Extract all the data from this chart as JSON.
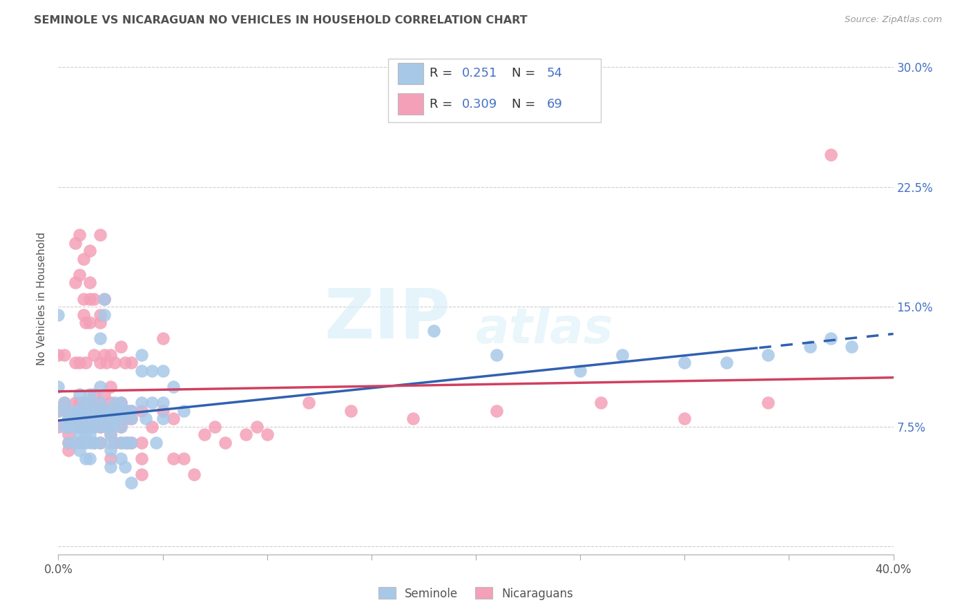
{
  "title": "SEMINOLE VS NICARAGUAN NO VEHICLES IN HOUSEHOLD CORRELATION CHART",
  "source": "Source: ZipAtlas.com",
  "ylabel": "No Vehicles in Household",
  "xlim": [
    0.0,
    0.4
  ],
  "ylim": [
    -0.005,
    0.315
  ],
  "watermark_line1": "ZIP",
  "watermark_line2": "atlas",
  "seminole_R": 0.251,
  "seminole_N": 54,
  "nicaraguan_R": 0.309,
  "nicaraguan_N": 69,
  "seminole_color": "#a8c8e8",
  "nicaraguan_color": "#f4a0b8",
  "seminole_line_color": "#3060b0",
  "nicaraguan_line_color": "#d04060",
  "title_color": "#505050",
  "blue_text_color": "#4472c4",
  "ytick_positions": [
    0.0,
    0.075,
    0.15,
    0.225,
    0.3
  ],
  "ytick_labels": [
    "",
    "7.5%",
    "15.0%",
    "22.5%",
    "30.0%"
  ],
  "seminole_points_x": [
    0.0,
    0.0,
    0.0,
    0.003,
    0.003,
    0.005,
    0.005,
    0.005,
    0.005,
    0.008,
    0.008,
    0.008,
    0.008,
    0.01,
    0.01,
    0.01,
    0.01,
    0.01,
    0.01,
    0.012,
    0.012,
    0.012,
    0.012,
    0.012,
    0.013,
    0.013,
    0.013,
    0.013,
    0.015,
    0.015,
    0.015,
    0.015,
    0.015,
    0.015,
    0.015,
    0.015,
    0.017,
    0.017,
    0.017,
    0.017,
    0.02,
    0.02,
    0.02,
    0.02,
    0.02,
    0.02,
    0.02,
    0.022,
    0.022,
    0.022,
    0.023,
    0.023,
    0.024,
    0.025,
    0.025,
    0.025,
    0.025,
    0.025,
    0.025,
    0.025,
    0.027,
    0.027,
    0.027,
    0.03,
    0.03,
    0.03,
    0.03,
    0.03,
    0.03,
    0.032,
    0.032,
    0.032,
    0.033,
    0.033,
    0.035,
    0.035,
    0.035,
    0.035,
    0.04,
    0.04,
    0.04,
    0.042,
    0.045,
    0.045,
    0.047,
    0.05,
    0.05,
    0.05,
    0.055,
    0.06,
    0.18,
    0.21,
    0.25,
    0.27,
    0.3,
    0.32,
    0.34,
    0.36,
    0.37,
    0.38
  ],
  "seminole_points_y": [
    0.145,
    0.1,
    0.085,
    0.075,
    0.09,
    0.085,
    0.08,
    0.075,
    0.065,
    0.085,
    0.08,
    0.075,
    0.065,
    0.095,
    0.085,
    0.08,
    0.075,
    0.07,
    0.06,
    0.09,
    0.085,
    0.08,
    0.075,
    0.065,
    0.075,
    0.07,
    0.065,
    0.055,
    0.095,
    0.09,
    0.085,
    0.08,
    0.075,
    0.07,
    0.065,
    0.055,
    0.085,
    0.08,
    0.075,
    0.065,
    0.13,
    0.1,
    0.09,
    0.085,
    0.08,
    0.075,
    0.065,
    0.155,
    0.145,
    0.085,
    0.085,
    0.08,
    0.075,
    0.085,
    0.08,
    0.075,
    0.07,
    0.065,
    0.06,
    0.05,
    0.09,
    0.085,
    0.08,
    0.09,
    0.085,
    0.08,
    0.075,
    0.065,
    0.055,
    0.085,
    0.065,
    0.05,
    0.085,
    0.065,
    0.085,
    0.08,
    0.065,
    0.04,
    0.12,
    0.11,
    0.09,
    0.08,
    0.11,
    0.09,
    0.065,
    0.11,
    0.09,
    0.08,
    0.1,
    0.085,
    0.135,
    0.12,
    0.11,
    0.12,
    0.115,
    0.115,
    0.12,
    0.125,
    0.13,
    0.125
  ],
  "nicaraguan_points_x": [
    0.0,
    0.0,
    0.0,
    0.003,
    0.003,
    0.005,
    0.005,
    0.005,
    0.005,
    0.005,
    0.005,
    0.008,
    0.008,
    0.008,
    0.008,
    0.008,
    0.01,
    0.01,
    0.01,
    0.01,
    0.01,
    0.01,
    0.01,
    0.01,
    0.012,
    0.012,
    0.012,
    0.013,
    0.013,
    0.013,
    0.013,
    0.013,
    0.015,
    0.015,
    0.015,
    0.015,
    0.015,
    0.015,
    0.015,
    0.015,
    0.017,
    0.017,
    0.017,
    0.017,
    0.017,
    0.017,
    0.02,
    0.02,
    0.02,
    0.02,
    0.02,
    0.02,
    0.02,
    0.02,
    0.02,
    0.022,
    0.022,
    0.022,
    0.023,
    0.023,
    0.023,
    0.025,
    0.025,
    0.025,
    0.025,
    0.025,
    0.025,
    0.027,
    0.027,
    0.027,
    0.03,
    0.03,
    0.03,
    0.03,
    0.03,
    0.03,
    0.032,
    0.033,
    0.033,
    0.033,
    0.035,
    0.035,
    0.035,
    0.035,
    0.04,
    0.04,
    0.04,
    0.04,
    0.045,
    0.05,
    0.05,
    0.055,
    0.055,
    0.06,
    0.065,
    0.07,
    0.075,
    0.08,
    0.09,
    0.095,
    0.1,
    0.12,
    0.14,
    0.17,
    0.21,
    0.26,
    0.3,
    0.34,
    0.37
  ],
  "nicaraguan_points_y": [
    0.12,
    0.085,
    0.075,
    0.12,
    0.09,
    0.085,
    0.08,
    0.075,
    0.07,
    0.065,
    0.06,
    0.19,
    0.165,
    0.115,
    0.09,
    0.08,
    0.195,
    0.17,
    0.115,
    0.09,
    0.085,
    0.08,
    0.075,
    0.065,
    0.18,
    0.155,
    0.145,
    0.14,
    0.115,
    0.09,
    0.085,
    0.075,
    0.185,
    0.165,
    0.155,
    0.14,
    0.09,
    0.085,
    0.08,
    0.075,
    0.155,
    0.12,
    0.095,
    0.085,
    0.075,
    0.065,
    0.195,
    0.145,
    0.14,
    0.115,
    0.09,
    0.085,
    0.08,
    0.075,
    0.065,
    0.155,
    0.12,
    0.095,
    0.115,
    0.085,
    0.075,
    0.12,
    0.1,
    0.09,
    0.085,
    0.07,
    0.055,
    0.115,
    0.085,
    0.065,
    0.125,
    0.09,
    0.085,
    0.08,
    0.075,
    0.065,
    0.115,
    0.085,
    0.08,
    0.065,
    0.115,
    0.085,
    0.08,
    0.065,
    0.085,
    0.065,
    0.055,
    0.045,
    0.075,
    0.13,
    0.085,
    0.08,
    0.055,
    0.055,
    0.045,
    0.07,
    0.075,
    0.065,
    0.07,
    0.075,
    0.07,
    0.09,
    0.085,
    0.08,
    0.085,
    0.09,
    0.08,
    0.09,
    0.245
  ]
}
